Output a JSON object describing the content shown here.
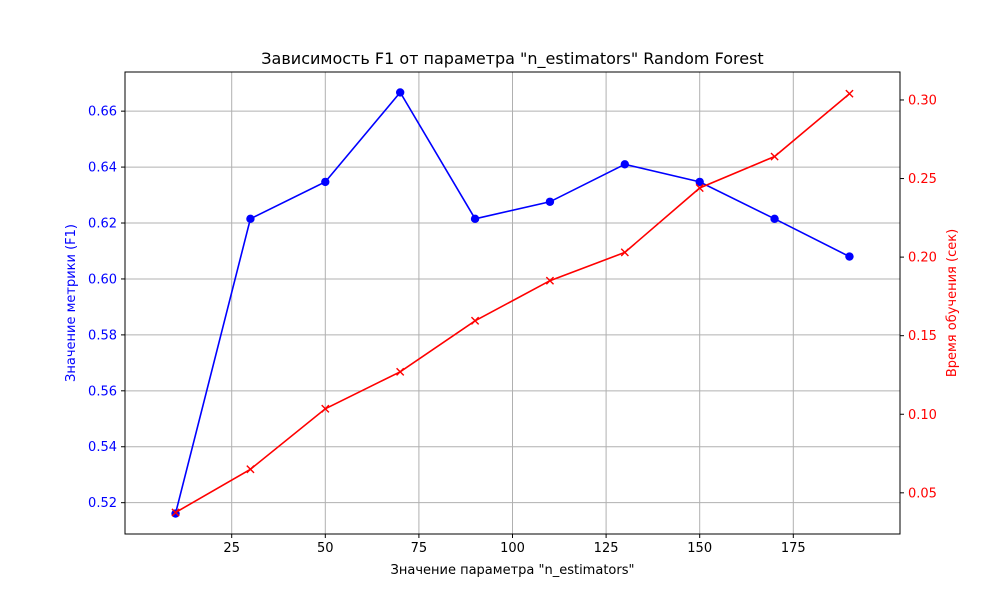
{
  "chart_data": {
    "type": "line",
    "title": "Зависимость F1 от параметра \"n_estimators\" Random Forest",
    "xlabel": "Значение параметра \"n_estimators\"",
    "ylabel_left": "Значение метрики (F1)",
    "ylabel_right": "Время обучения (сек)",
    "grid": true,
    "x": [
      10,
      30,
      50,
      70,
      90,
      110,
      130,
      150,
      170,
      190
    ],
    "xlim": [
      -3.5,
      203.5
    ],
    "xticks": [
      25,
      50,
      75,
      100,
      125,
      150,
      175
    ],
    "series": [
      {
        "axis": "left",
        "color": "#0000ff",
        "marker": "circle",
        "values": [
          0.5161,
          0.6215,
          0.6347,
          0.6667,
          0.6215,
          0.6276,
          0.641,
          0.6347,
          0.6215,
          0.608
        ]
      },
      {
        "axis": "right",
        "color": "#ff0000",
        "marker": "x",
        "values": [
          0.0375,
          0.065,
          0.1035,
          0.127,
          0.1595,
          0.185,
          0.203,
          0.244,
          0.264,
          0.304
        ]
      }
    ],
    "ylim_left": [
      0.5088,
      0.674
    ],
    "yticks_left": [
      "0.52",
      "0.54",
      "0.56",
      "0.58",
      "0.60",
      "0.62",
      "0.64",
      "0.66"
    ],
    "ylim_right": [
      0.0238,
      0.3178
    ],
    "yticks_right": [
      "0.05",
      "0.10",
      "0.15",
      "0.20",
      "0.25",
      "0.30"
    ],
    "left_axis_color": "#0000ff",
    "right_axis_color": "#ff0000"
  }
}
